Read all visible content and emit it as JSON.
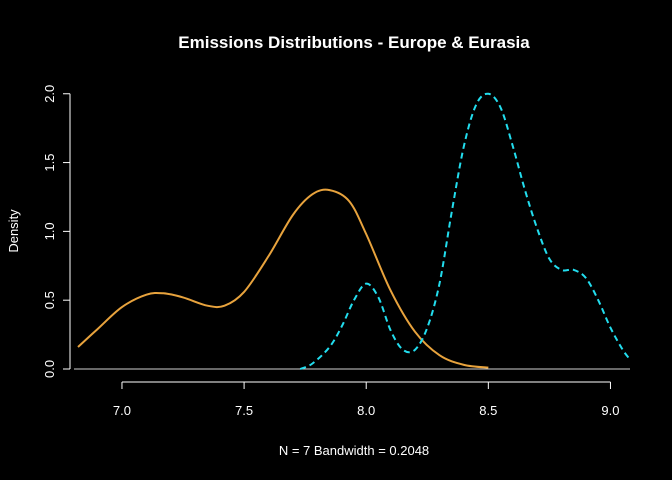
{
  "chart_data": {
    "type": "line",
    "title": "Emissions Distributions - Europe & Eurasia",
    "xlabel": "N = 7   Bandwidth = 0.2048",
    "ylabel": "Density",
    "xlim": [
      6.82,
      9.08
    ],
    "ylim": [
      -0.08,
      2.1
    ],
    "xticks": [
      "7.0",
      "7.5",
      "8.0",
      "8.5",
      "9.0"
    ],
    "xtick_values": [
      7.0,
      7.5,
      8.0,
      8.5,
      9.0
    ],
    "yticks": [
      "0.0",
      "0.5",
      "1.0",
      "1.5",
      "2.0"
    ],
    "ytick_values": [
      0.0,
      0.5,
      1.0,
      1.5,
      2.0
    ],
    "baseline": 0,
    "grid": false,
    "background": "#000000",
    "series": [
      {
        "color": "#E8A33D",
        "dash": "solid",
        "x": [
          6.82,
          6.9,
          7.0,
          7.1,
          7.17,
          7.25,
          7.35,
          7.42,
          7.5,
          7.6,
          7.7,
          7.78,
          7.85,
          7.93,
          8.0,
          8.1,
          8.2,
          8.3,
          8.4,
          8.5
        ],
        "y": [
          0.16,
          0.29,
          0.45,
          0.54,
          0.55,
          0.52,
          0.46,
          0.46,
          0.56,
          0.82,
          1.12,
          1.27,
          1.3,
          1.22,
          0.98,
          0.57,
          0.27,
          0.1,
          0.03,
          0.01
        ]
      },
      {
        "color": "#22DDEE",
        "dash": "dashed",
        "x": [
          7.73,
          7.78,
          7.85,
          7.9,
          7.95,
          8.0,
          8.05,
          8.1,
          8.15,
          8.2,
          8.25,
          8.3,
          8.35,
          8.4,
          8.45,
          8.5,
          8.55,
          8.6,
          8.65,
          8.7,
          8.75,
          8.8,
          8.85,
          8.9,
          8.95,
          9.0,
          9.05,
          9.08
        ],
        "y": [
          0.0,
          0.04,
          0.16,
          0.31,
          0.5,
          0.62,
          0.52,
          0.28,
          0.14,
          0.14,
          0.3,
          0.62,
          1.14,
          1.62,
          1.92,
          2.0,
          1.9,
          1.62,
          1.3,
          1.02,
          0.8,
          0.72,
          0.72,
          0.66,
          0.5,
          0.3,
          0.14,
          0.07
        ]
      }
    ]
  }
}
